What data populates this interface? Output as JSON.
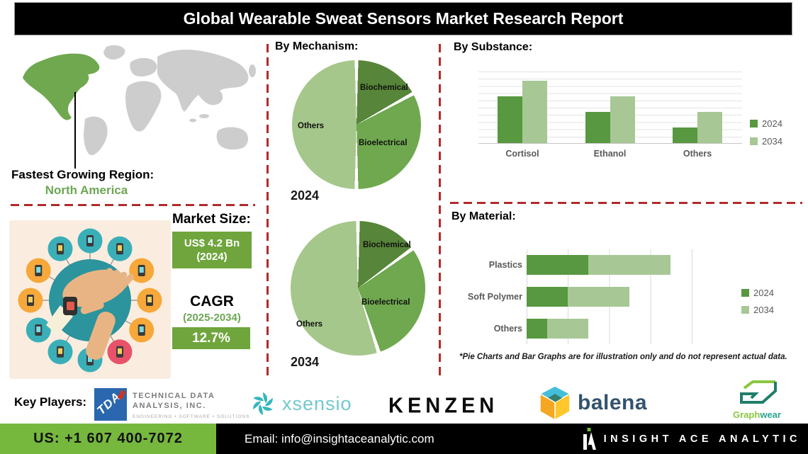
{
  "title": "Global Wearable Sweat Sensors Market Research Report",
  "region": {
    "heading": "Fastest Growing Region:",
    "name": "North America"
  },
  "sections": {
    "mechanism": "By Mechanism:",
    "substance": "By  Substance:",
    "material": "By Material:"
  },
  "market": {
    "heading": "Market Size:",
    "size_value": "US$ 4.2 Bn",
    "size_year": "(2024)",
    "cagr_label": "CAGR",
    "cagr_period": "(2025-2034)",
    "cagr_value": "12.7%"
  },
  "footnote": "*Pie Charts and Bar Graphs are for illustration only and do not represent actual data.",
  "key_players": {
    "label": "Key Players:",
    "tda": {
      "monogram": "TDA",
      "line1": "TECHNICAL DATA",
      "line2": "ANALYSIS, INC.",
      "tagline": "ENGINEERING  •  SOFTWARE  •  SOLUTIONS"
    },
    "xsensio": "xsensio",
    "kenzen": "KENZEN",
    "balena": "balena",
    "graphwear": {
      "part1": "Graph",
      "part2": "wear"
    }
  },
  "footer": {
    "phone": "US: +1 607 400-7072",
    "email": "Email: info@insightaceanalytic.com",
    "brand": "INSIGHT ACE ANALYTIC"
  },
  "colors": {
    "dark_green": "#578539",
    "mid_green": "#6FA84F",
    "light_green": "#A5C78B",
    "bar_dark": "#579840",
    "bar_light": "#A7C795",
    "accent_box_green": "#6FA53C",
    "footer_green": "#76B83E",
    "dashed_red": "#B02B2B"
  },
  "chart_data": [
    {
      "type": "pie",
      "title": "By Mechanism — 2024",
      "year_label": "2024",
      "labels": [
        "Biochemical",
        "Bioelectrical",
        "Others"
      ],
      "values": [
        17,
        33,
        50
      ],
      "colors": [
        "#578539",
        "#6FA84F",
        "#A5C78B"
      ],
      "note": "illustrative only"
    },
    {
      "type": "pie",
      "title": "By Mechanism — 2034",
      "year_label": "2034",
      "labels": [
        "Biochemical",
        "Bioelectrical",
        "Others"
      ],
      "values": [
        15,
        30,
        55
      ],
      "colors": [
        "#578539",
        "#6FA84F",
        "#A5C78B"
      ],
      "note": "illustrative only"
    },
    {
      "type": "bar",
      "title": "By Substance",
      "orientation": "vertical",
      "categories": [
        "Cortisol",
        "Ethanol",
        "Others"
      ],
      "series": [
        {
          "name": "2024",
          "values": [
            3,
            2,
            1
          ],
          "color": "#579840"
        },
        {
          "name": "2034",
          "values": [
            4,
            3,
            2
          ],
          "color": "#A7C795"
        }
      ],
      "ylim": [
        0,
        4.6
      ],
      "grid": "horizontal",
      "legend_position": "right",
      "note": "illustrative only"
    },
    {
      "type": "bar",
      "title": "By Material",
      "orientation": "horizontal",
      "stacked": true,
      "categories": [
        "Plastics",
        "Soft Polymer",
        "Others"
      ],
      "series": [
        {
          "name": "2024",
          "values": [
            3,
            2,
            1
          ],
          "color": "#579840"
        },
        {
          "name": "2034",
          "values": [
            4,
            3,
            2
          ],
          "color": "#A7C795"
        }
      ],
      "xlim": [
        0,
        10
      ],
      "grid": "vertical",
      "legend_position": "right",
      "note": "illustrative only"
    }
  ]
}
